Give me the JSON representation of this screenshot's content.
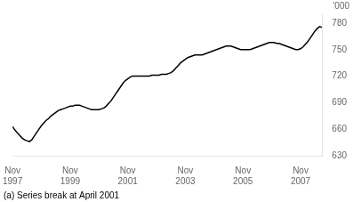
{
  "chart_data": {
    "type": "line",
    "ylabel": "'000",
    "footnote": "(a) Series break at April 2001",
    "color": "#000000",
    "grid": false,
    "ylim": [
      630,
      790
    ],
    "yticks": [
      630,
      660,
      690,
      720,
      750,
      780
    ],
    "categories": [
      "Nov\n1997",
      null,
      null,
      null,
      null,
      null,
      null,
      null,
      null,
      null,
      null,
      null,
      null,
      null,
      null,
      null,
      null,
      null,
      null,
      null,
      null,
      null,
      null,
      null,
      "Nov\n1999",
      null,
      null,
      null,
      null,
      null,
      null,
      null,
      null,
      null,
      null,
      null,
      null,
      null,
      null,
      null,
      null,
      null,
      null,
      null,
      null,
      null,
      null,
      null,
      "Nov\n2001",
      null,
      null,
      null,
      null,
      null,
      null,
      null,
      null,
      null,
      null,
      null,
      null,
      null,
      null,
      null,
      null,
      null,
      null,
      null,
      null,
      null,
      null,
      null,
      "Nov\n2003",
      null,
      null,
      null,
      null,
      null,
      null,
      null,
      null,
      null,
      null,
      null,
      null,
      null,
      null,
      null,
      null,
      null,
      null,
      null,
      null,
      null,
      null,
      null,
      "Nov\n2005",
      null,
      null,
      null,
      null,
      null,
      null,
      null,
      null,
      null,
      null,
      null,
      null,
      null,
      null,
      null,
      null,
      null,
      null,
      null,
      null,
      null,
      null,
      null,
      "Nov\n2007",
      null,
      null,
      null,
      null,
      null,
      null,
      null,
      null,
      null
    ],
    "values": [
      663,
      659,
      656,
      653,
      650,
      648,
      647,
      646,
      648,
      652,
      656,
      660,
      664,
      667,
      670,
      672,
      675,
      677,
      679,
      681,
      682,
      683,
      684,
      685,
      686,
      686,
      687,
      687,
      687,
      686,
      685,
      684,
      683,
      682,
      682,
      682,
      682,
      683,
      684,
      686,
      689,
      692,
      696,
      700,
      704,
      708,
      712,
      715,
      717,
      719,
      720,
      720,
      720,
      720,
      720,
      720,
      720,
      720,
      721,
      721,
      721,
      721,
      722,
      722,
      722,
      723,
      724,
      726,
      729,
      732,
      735,
      737,
      739,
      741,
      742,
      743,
      744,
      744,
      744,
      744,
      745,
      746,
      747,
      748,
      749,
      750,
      751,
      752,
      753,
      754,
      754,
      754,
      753,
      752,
      751,
      750,
      750,
      750,
      750,
      750,
      751,
      752,
      753,
      754,
      755,
      756,
      757,
      758,
      758,
      758,
      757,
      757,
      756,
      755,
      754,
      753,
      752,
      751,
      750,
      750,
      751,
      753,
      756,
      759,
      763,
      767,
      771,
      774,
      776,
      775
    ]
  }
}
